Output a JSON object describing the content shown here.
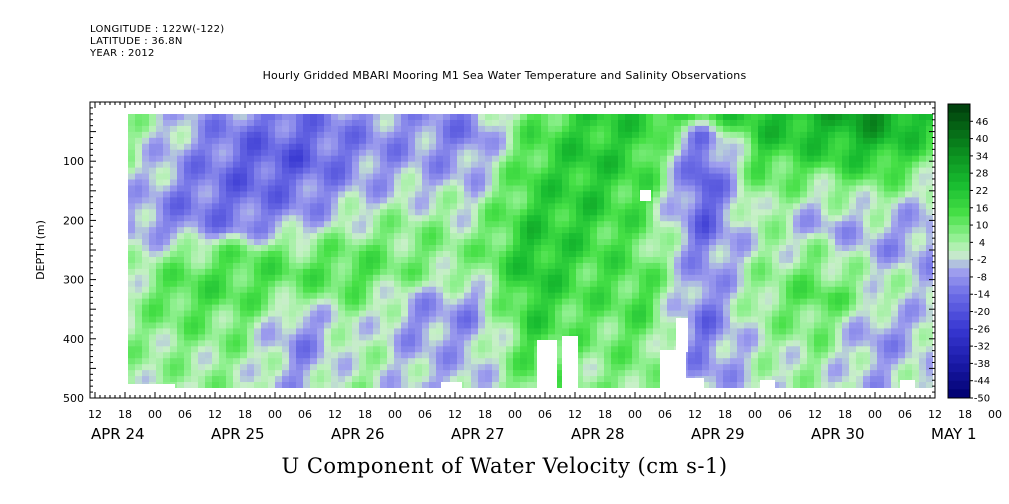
{
  "header": {
    "longitude": "LONGITUDE : 122W(-122)",
    "latitude": "LATITUDE : 36.8N",
    "year": "YEAR : 2012",
    "title": "Hourly Gridded MBARI Mooring M1 Sea Water Temperature and Salinity Observations"
  },
  "chart_data": {
    "type": "heatmap",
    "title": "Hourly Gridded MBARI Mooring M1 Sea Water Temperature and Salinity Observations",
    "xlabel": "U Component of Water Velocity (cm s-1)",
    "ylabel": "DEPTH (m)",
    "ylim": [
      500,
      0
    ],
    "y_ticks": [
      100,
      200,
      300,
      400,
      500
    ],
    "x_hour_ticks": [
      "12",
      "18",
      "00",
      "06",
      "12",
      "18",
      "00",
      "06",
      "12",
      "18",
      "00",
      "06",
      "12",
      "18",
      "00",
      "06",
      "12",
      "18",
      "00",
      "06",
      "12",
      "18",
      "00",
      "06",
      "12",
      "18",
      "00",
      "06",
      "12",
      "18",
      "00",
      "06"
    ],
    "x_date_labels": [
      "APR 24",
      "APR 25",
      "APR 26",
      "APR 27",
      "APR 28",
      "APR 29",
      "APR 30",
      "MAY  1"
    ],
    "colorbar": {
      "labels": [
        "46",
        "40",
        "34",
        "28",
        "22",
        "16",
        "10",
        "4",
        "-2",
        "-8",
        "-14",
        "-20",
        "-26",
        "-32",
        "-38",
        "-44",
        "-50"
      ],
      "range": [
        -50,
        52
      ]
    },
    "depth_rows": [
      20,
      60,
      100,
      140,
      180,
      220,
      260,
      300,
      340,
      380,
      420,
      460,
      480
    ],
    "time_columns": [
      "Apr24 18",
      "Apr25 00",
      "Apr25 12",
      "Apr26 00",
      "Apr26 12",
      "Apr27 00",
      "Apr27 12",
      "Apr28 00",
      "Apr28 06",
      "Apr28 12",
      "Apr29 00",
      "Apr29 12",
      "Apr30 00",
      "Apr30 12",
      "May01 00"
    ],
    "values": [
      [
        4,
        -4,
        -10,
        -12,
        -8,
        -6,
        -10,
        10,
        18,
        20,
        16,
        22,
        26,
        34,
        20
      ],
      [
        4,
        -6,
        -14,
        -16,
        -10,
        -8,
        -12,
        12,
        20,
        18,
        -14,
        20,
        22,
        28,
        16
      ],
      [
        2,
        -8,
        -16,
        -18,
        -10,
        -6,
        -8,
        14,
        22,
        16,
        -18,
        14,
        16,
        20,
        10
      ],
      [
        0,
        -10,
        -16,
        -14,
        -6,
        -4,
        -4,
        16,
        20,
        14,
        -20,
        10,
        6,
        10,
        2
      ],
      [
        -4,
        -12,
        -14,
        -10,
        -2,
        2,
        0,
        18,
        20,
        12,
        -18,
        6,
        -2,
        2,
        -4
      ],
      [
        -6,
        -10,
        -10,
        -4,
        4,
        6,
        4,
        20,
        18,
        10,
        -16,
        4,
        -6,
        -4,
        -8
      ],
      [
        -2,
        6,
        10,
        8,
        10,
        8,
        6,
        22,
        16,
        10,
        -12,
        2,
        4,
        -6,
        -6
      ],
      [
        2,
        12,
        14,
        12,
        14,
        6,
        4,
        22,
        14,
        12,
        -10,
        4,
        10,
        0,
        -4
      ],
      [
        4,
        14,
        12,
        6,
        8,
        -4,
        -6,
        20,
        12,
        14,
        -12,
        6,
        14,
        4,
        -2
      ],
      [
        4,
        10,
        8,
        -8,
        4,
        -8,
        -8,
        18,
        10,
        12,
        -14,
        4,
        10,
        -6,
        -4
      ],
      [
        4,
        6,
        6,
        -10,
        2,
        -6,
        -6,
        14,
        8,
        10,
        -12,
        2,
        6,
        -8,
        -2
      ],
      [
        4,
        4,
        4,
        -8,
        4,
        -4,
        -4,
        12,
        6,
        8,
        -10,
        0,
        4,
        -6,
        0
      ],
      [
        4,
        4,
        4,
        -6,
        4,
        -4,
        -4,
        10,
        6,
        8,
        -8,
        0,
        2,
        -4,
        0
      ]
    ]
  }
}
